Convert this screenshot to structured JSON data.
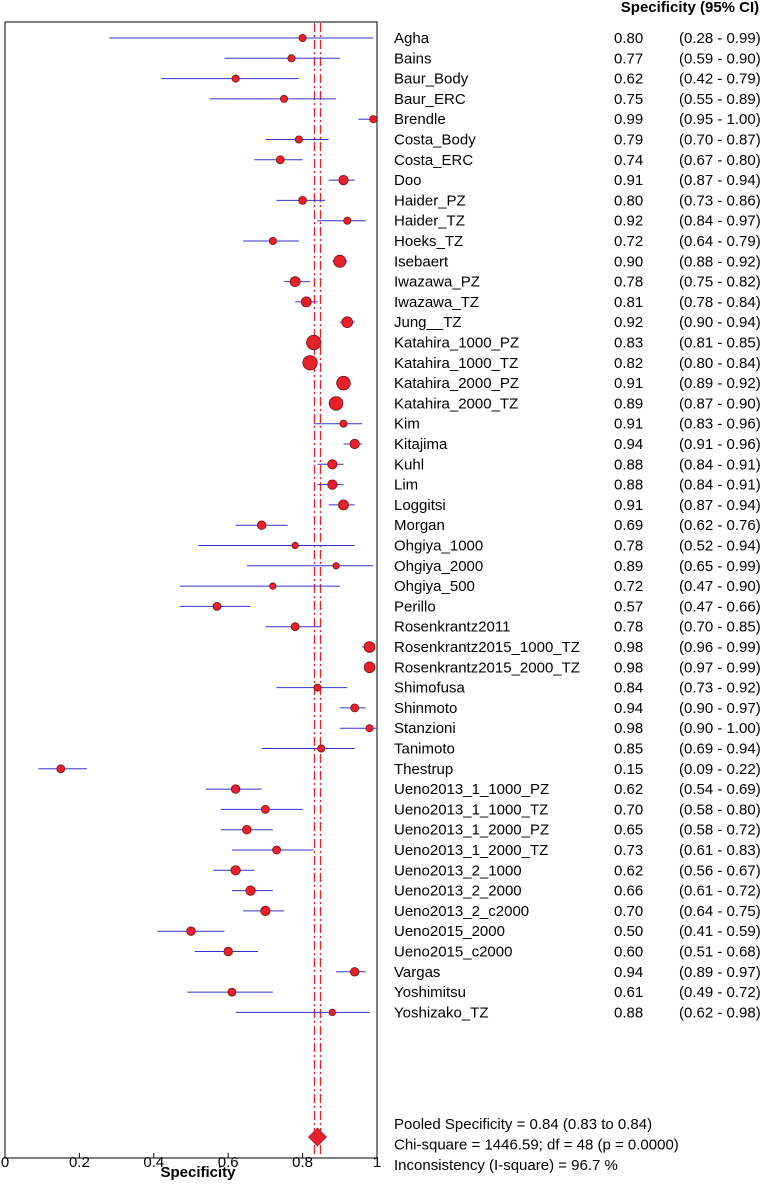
{
  "chart_data": {
    "type": "forest",
    "header": "Specificity (95% CI)",
    "xlabel": "Specificity",
    "xlim": [
      0,
      1
    ],
    "xticks": [
      "0",
      "0.2",
      "0.4",
      "0.6",
      "0.8",
      "1"
    ],
    "pooled": 0.84,
    "colors": {
      "point": "#e8202a",
      "ci_line": "#3333cc",
      "pooled_line": "#e8202a",
      "axis": "#000000"
    },
    "studies": [
      {
        "name": "Agha",
        "est": 0.8,
        "lo": 0.28,
        "hi": 0.99,
        "w": 1
      },
      {
        "name": "Bains",
        "est": 0.77,
        "lo": 0.59,
        "hi": 0.9,
        "w": 1
      },
      {
        "name": "Baur_Body",
        "est": 0.62,
        "lo": 0.42,
        "hi": 0.79,
        "w": 1
      },
      {
        "name": "Baur_ERC",
        "est": 0.75,
        "lo": 0.55,
        "hi": 0.89,
        "w": 1
      },
      {
        "name": "Brendle",
        "est": 0.99,
        "lo": 0.95,
        "hi": 1.0,
        "w": 1
      },
      {
        "name": "Costa_Body",
        "est": 0.79,
        "lo": 0.7,
        "hi": 0.87,
        "w": 1
      },
      {
        "name": "Costa_ERC",
        "est": 0.74,
        "lo": 0.67,
        "hi": 0.8,
        "w": 1.1
      },
      {
        "name": "Doo",
        "est": 0.91,
        "lo": 0.87,
        "hi": 0.94,
        "w": 1.3
      },
      {
        "name": "Haider_PZ",
        "est": 0.8,
        "lo": 0.73,
        "hi": 0.86,
        "w": 1.1
      },
      {
        "name": "Haider_TZ",
        "est": 0.92,
        "lo": 0.84,
        "hi": 0.97,
        "w": 1
      },
      {
        "name": "Hoeks_TZ",
        "est": 0.72,
        "lo": 0.64,
        "hi": 0.79,
        "w": 1
      },
      {
        "name": "Isebaert",
        "est": 0.9,
        "lo": 0.88,
        "hi": 0.92,
        "w": 1.7
      },
      {
        "name": "Iwazawa_PZ",
        "est": 0.78,
        "lo": 0.75,
        "hi": 0.82,
        "w": 1.4
      },
      {
        "name": "Iwazawa_TZ",
        "est": 0.81,
        "lo": 0.78,
        "hi": 0.84,
        "w": 1.4
      },
      {
        "name": "Jung__TZ",
        "est": 0.92,
        "lo": 0.9,
        "hi": 0.94,
        "w": 1.5
      },
      {
        "name": "Katahira_1000_PZ",
        "est": 0.83,
        "lo": 0.81,
        "hi": 0.85,
        "w": 2.0
      },
      {
        "name": "Katahira_1000_TZ",
        "est": 0.82,
        "lo": 0.8,
        "hi": 0.84,
        "w": 2.0
      },
      {
        "name": "Katahira_2000_PZ",
        "est": 0.91,
        "lo": 0.89,
        "hi": 0.92,
        "w": 1.9
      },
      {
        "name": "Katahira_2000_TZ",
        "est": 0.89,
        "lo": 0.87,
        "hi": 0.9,
        "w": 1.9
      },
      {
        "name": "Kim",
        "est": 0.91,
        "lo": 0.83,
        "hi": 0.96,
        "w": 1
      },
      {
        "name": "Kitajima",
        "est": 0.94,
        "lo": 0.91,
        "hi": 0.96,
        "w": 1.3
      },
      {
        "name": "Kuhl",
        "est": 0.88,
        "lo": 0.84,
        "hi": 0.91,
        "w": 1.3
      },
      {
        "name": "Lim",
        "est": 0.88,
        "lo": 0.84,
        "hi": 0.91,
        "w": 1.3
      },
      {
        "name": "Loggitsi",
        "est": 0.91,
        "lo": 0.87,
        "hi": 0.94,
        "w": 1.4
      },
      {
        "name": "Morgan",
        "est": 0.69,
        "lo": 0.62,
        "hi": 0.76,
        "w": 1.2
      },
      {
        "name": "Ohgiya_1000",
        "est": 0.78,
        "lo": 0.52,
        "hi": 0.94,
        "w": 0.9
      },
      {
        "name": "Ohgiya_2000",
        "est": 0.89,
        "lo": 0.65,
        "hi": 0.99,
        "w": 0.9
      },
      {
        "name": "Ohgiya_500",
        "est": 0.72,
        "lo": 0.47,
        "hi": 0.9,
        "w": 0.9
      },
      {
        "name": "Perillo",
        "est": 0.57,
        "lo": 0.47,
        "hi": 0.66,
        "w": 1.1
      },
      {
        "name": "Rosenkrantz2011",
        "est": 0.78,
        "lo": 0.7,
        "hi": 0.85,
        "w": 1.1
      },
      {
        "name": "Rosenkrantz2015_1000_TZ",
        "est": 0.98,
        "lo": 0.96,
        "hi": 0.99,
        "w": 1.5
      },
      {
        "name": "Rosenkrantz2015_2000_TZ",
        "est": 0.98,
        "lo": 0.97,
        "hi": 0.99,
        "w": 1.5
      },
      {
        "name": "Shimofusa",
        "est": 0.84,
        "lo": 0.73,
        "hi": 0.92,
        "w": 1
      },
      {
        "name": "Shinmoto",
        "est": 0.94,
        "lo": 0.9,
        "hi": 0.97,
        "w": 1.1
      },
      {
        "name": "Stanzioni",
        "est": 0.98,
        "lo": 0.9,
        "hi": 1.0,
        "w": 1
      },
      {
        "name": "Tanimoto",
        "est": 0.85,
        "lo": 0.69,
        "hi": 0.94,
        "w": 1
      },
      {
        "name": "Thestrup",
        "est": 0.15,
        "lo": 0.09,
        "hi": 0.22,
        "w": 1.1
      },
      {
        "name": "Ueno2013_1_1000_PZ",
        "est": 0.62,
        "lo": 0.54,
        "hi": 0.69,
        "w": 1.2
      },
      {
        "name": "Ueno2013_1_1000_TZ",
        "est": 0.7,
        "lo": 0.58,
        "hi": 0.8,
        "w": 1.1
      },
      {
        "name": "Ueno2013_1_2000_PZ",
        "est": 0.65,
        "lo": 0.58,
        "hi": 0.72,
        "w": 1.2
      },
      {
        "name": "Ueno2013_1_2000_TZ",
        "est": 0.73,
        "lo": 0.61,
        "hi": 0.83,
        "w": 1.1
      },
      {
        "name": "Ueno2013_2_1000",
        "est": 0.62,
        "lo": 0.56,
        "hi": 0.67,
        "w": 1.3
      },
      {
        "name": "Ueno2013_2_2000",
        "est": 0.66,
        "lo": 0.61,
        "hi": 0.72,
        "w": 1.3
      },
      {
        "name": "Ueno2013_2_c2000",
        "est": 0.7,
        "lo": 0.64,
        "hi": 0.75,
        "w": 1.3
      },
      {
        "name": "Ueno2015_2000",
        "est": 0.5,
        "lo": 0.41,
        "hi": 0.59,
        "w": 1.2
      },
      {
        "name": "Ueno2015_c2000",
        "est": 0.6,
        "lo": 0.51,
        "hi": 0.68,
        "w": 1.2
      },
      {
        "name": "Vargas",
        "est": 0.94,
        "lo": 0.89,
        "hi": 0.97,
        "w": 1.2
      },
      {
        "name": "Yoshimitsu",
        "est": 0.61,
        "lo": 0.49,
        "hi": 0.72,
        "w": 1.1
      },
      {
        "name": "Yoshizako_TZ",
        "est": 0.88,
        "lo": 0.62,
        "hi": 0.98,
        "w": 0.9
      }
    ],
    "summary": [
      "Pooled Specificity = 0.84 (0.83 to 0.84)",
      "Chi-square = 1446.59; df =  48 (p = 0.0000)",
      "Inconsistency (I-square) = 96.7 %"
    ]
  }
}
